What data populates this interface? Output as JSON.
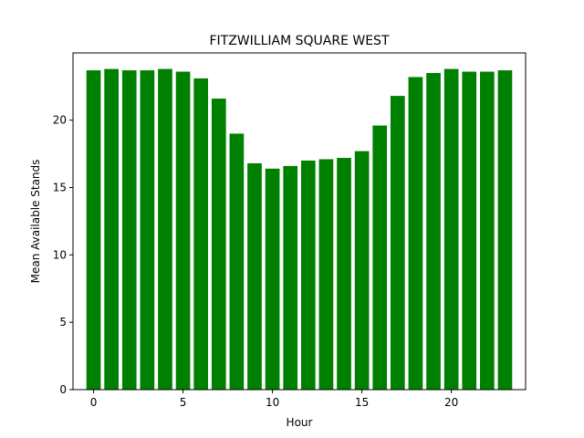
{
  "chart_data": {
    "type": "bar",
    "title": "FITZWILLIAM SQUARE WEST",
    "xlabel": "Hour",
    "ylabel": "Mean Available Stands",
    "x": [
      0,
      1,
      2,
      3,
      4,
      5,
      6,
      7,
      8,
      9,
      10,
      11,
      12,
      13,
      14,
      15,
      16,
      17,
      18,
      19,
      20,
      21,
      22,
      23
    ],
    "values": [
      23.7,
      23.8,
      23.7,
      23.7,
      23.8,
      23.6,
      23.1,
      21.6,
      19.0,
      16.8,
      16.4,
      16.6,
      17.0,
      17.1,
      17.2,
      17.7,
      19.6,
      21.8,
      23.2,
      23.5,
      23.8,
      23.6,
      23.6,
      23.7
    ],
    "xlim": [
      -1.15,
      24.15
    ],
    "ylim": [
      0,
      24.99
    ],
    "xticks": [
      0,
      5,
      10,
      15,
      20
    ],
    "yticks": [
      0,
      5,
      10,
      15,
      20
    ],
    "bar_color": "#008000",
    "grid": false
  }
}
